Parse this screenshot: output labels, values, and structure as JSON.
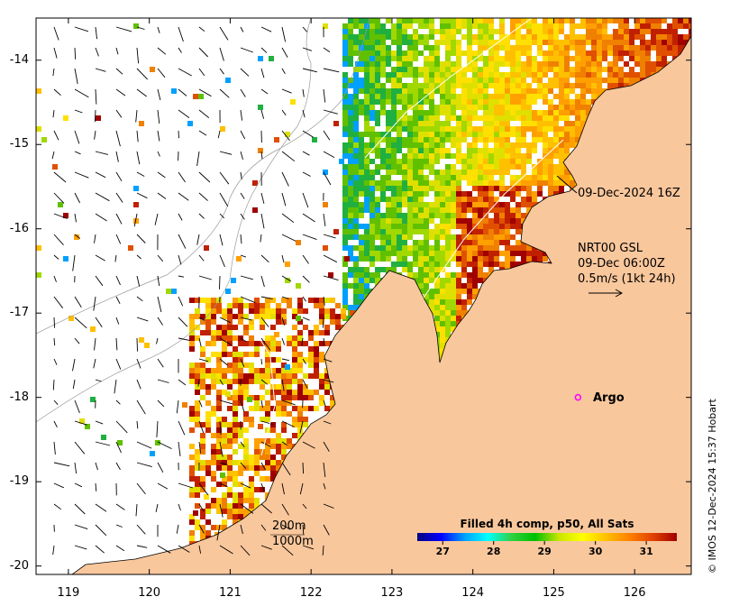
{
  "map": {
    "lon_range": [
      118.6,
      126.7
    ],
    "lat_range": [
      -20.1,
      -13.5
    ],
    "lon_ticks": [
      "119",
      "120",
      "121",
      "122",
      "123",
      "124",
      "125",
      "126"
    ],
    "lat_ticks": [
      "-14",
      "-15",
      "-16",
      "-17",
      "-18",
      "-19",
      "-20"
    ],
    "colors": {
      "land": "#f9c79c",
      "coast": "#000000",
      "isobath": "#9a9a9a"
    }
  },
  "labels": {
    "track_time": "09-Dec-2024 16Z",
    "current_source": "NRT00 GSL",
    "current_time": "09-Dec 06:00Z",
    "current_scale": "0.5m/s (1kt 24h)",
    "argo": "Argo",
    "depth_200": "200m",
    "depth_1000": "1000m"
  },
  "colorbar": {
    "title": "Filled 4h comp, p50, All Sats",
    "ticks": [
      "27",
      "28",
      "29",
      "30",
      "31"
    ],
    "range": [
      26.5,
      31.6
    ],
    "stops": [
      "#00007f",
      "#0000ff",
      "#00a0ff",
      "#00ffff",
      "#30d040",
      "#00c000",
      "#c8e600",
      "#ffff00",
      "#ffc000",
      "#ff8000",
      "#e04000",
      "#a00000"
    ]
  },
  "argo_float": {
    "lon": 125.3,
    "lat": -18.0,
    "color": "#ff00ff"
  },
  "credit": "© IMOS 12-Dec-2024 15:37 Hobart"
}
